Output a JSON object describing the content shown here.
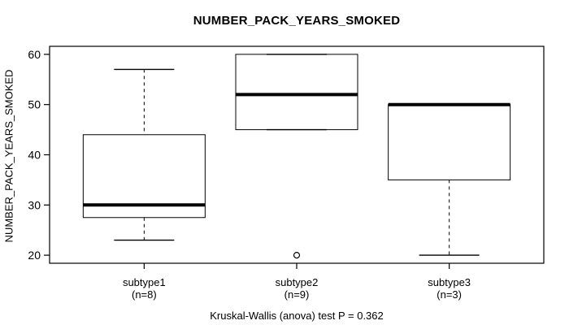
{
  "chart_data": {
    "type": "boxplot",
    "title": "NUMBER_PACK_YEARS_SMOKED",
    "ylabel": "NUMBER_PACK_YEARS_SMOKED",
    "xlabel": "",
    "annotation": "Kruskal-Wallis (anova) test P = 0.362",
    "ylim": [
      18.4,
      61.6
    ],
    "yticks": [
      20,
      30,
      40,
      50,
      60
    ],
    "grid": false,
    "legend": null,
    "groups": [
      {
        "label": "subtype1",
        "sublabel": "(n=8)",
        "n": 8,
        "whisker_low": 23,
        "q1": 27.5,
        "median": 30,
        "q3": 44,
        "whisker_high": 57,
        "outliers": []
      },
      {
        "label": "subtype2",
        "sublabel": "(n=9)",
        "n": 9,
        "whisker_low": 45,
        "q1": 45,
        "median": 52,
        "q3": 60,
        "whisker_high": 60,
        "outliers": [
          20
        ]
      },
      {
        "label": "subtype3",
        "sublabel": "(n=3)",
        "n": 3,
        "whisker_low": 20,
        "q1": 35,
        "median": 50,
        "q3": 50,
        "whisker_high": 50,
        "outliers": []
      }
    ]
  },
  "colors": {
    "line": "#000000",
    "background": "#ffffff",
    "box_fill": "#ffffff"
  }
}
